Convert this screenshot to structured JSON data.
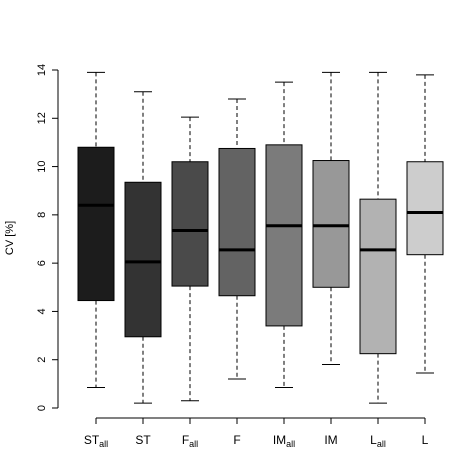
{
  "chart_data": {
    "type": "box",
    "ylabel": "CV [%]",
    "ylim": [
      0,
      14
    ],
    "yticks": [
      "0",
      "2",
      "4",
      "6",
      "8",
      "10",
      "12",
      "14"
    ],
    "grid": false,
    "categories": [
      {
        "label": "ST",
        "sub": "all"
      },
      {
        "label": "ST",
        "sub": ""
      },
      {
        "label": "F",
        "sub": "all"
      },
      {
        "label": "F",
        "sub": ""
      },
      {
        "label": "IM",
        "sub": "all"
      },
      {
        "label": "IM",
        "sub": ""
      },
      {
        "label": "L",
        "sub": "all"
      },
      {
        "label": "L",
        "sub": ""
      }
    ],
    "boxes": [
      {
        "min": 0.85,
        "q1": 4.45,
        "median": 8.4,
        "q3": 10.8,
        "max": 13.9,
        "color": "#1c1c1c"
      },
      {
        "min": 0.2,
        "q1": 2.95,
        "median": 6.05,
        "q3": 9.35,
        "max": 13.1,
        "color": "#333333"
      },
      {
        "min": 0.3,
        "q1": 5.05,
        "median": 7.35,
        "q3": 10.2,
        "max": 12.05,
        "color": "#4a4a4a"
      },
      {
        "min": 1.2,
        "q1": 4.65,
        "median": 6.55,
        "q3": 10.75,
        "max": 12.8,
        "color": "#636363"
      },
      {
        "min": 0.85,
        "q1": 3.4,
        "median": 7.55,
        "q3": 10.9,
        "max": 13.5,
        "color": "#7b7b7b"
      },
      {
        "min": 1.8,
        "q1": 5.0,
        "median": 7.55,
        "q3": 10.25,
        "max": 13.9,
        "color": "#989898"
      },
      {
        "min": 0.2,
        "q1": 2.25,
        "median": 6.55,
        "q3": 8.65,
        "max": 13.9,
        "color": "#b2b2b2"
      },
      {
        "min": 1.45,
        "q1": 6.35,
        "median": 8.1,
        "q3": 10.2,
        "max": 13.8,
        "color": "#cdcdcd"
      }
    ]
  }
}
